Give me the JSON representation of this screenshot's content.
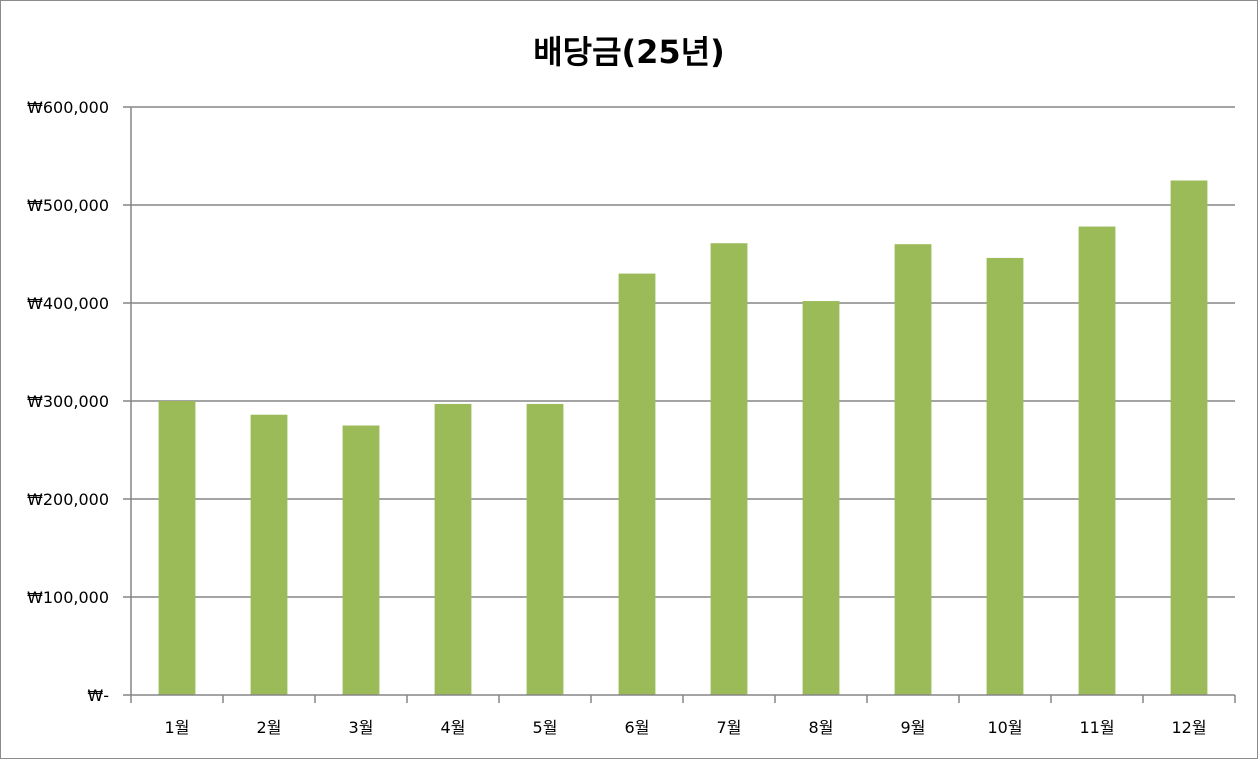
{
  "chart_data": {
    "type": "bar",
    "title": "배당금(25년)",
    "xlabel": "",
    "ylabel": "",
    "categories": [
      "1월",
      "2월",
      "3월",
      "4월",
      "5월",
      "6월",
      "7월",
      "8월",
      "9월",
      "10월",
      "11월",
      "12월"
    ],
    "values": [
      300000,
      286000,
      275000,
      297000,
      297000,
      430000,
      461000,
      402000,
      460000,
      446000,
      478000,
      525000
    ],
    "ylim": [
      0,
      600000
    ],
    "yticks": [
      0,
      100000,
      200000,
      300000,
      400000,
      500000,
      600000
    ],
    "ytick_labels": [
      "₩-",
      "₩100,000",
      "₩200,000",
      "₩300,000",
      "₩400,000",
      "₩500,000",
      "₩600,000"
    ],
    "grid": "horizontal",
    "legend": "none",
    "bar_color": "#9bbb59",
    "grid_color": "#868686"
  }
}
